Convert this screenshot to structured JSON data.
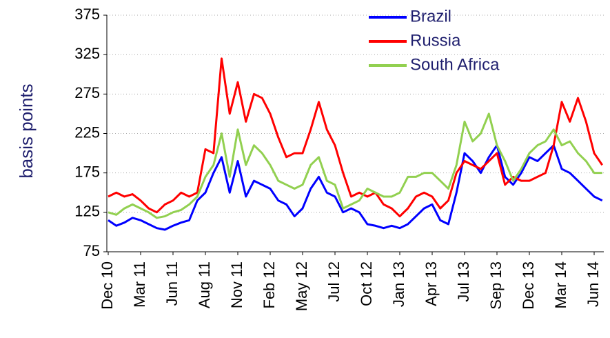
{
  "chart_data": {
    "type": "line",
    "ylabel": "basis points",
    "categories": [
      "Dec 10",
      null,
      null,
      null,
      "Mar 11",
      null,
      null,
      null,
      "Jun 11",
      null,
      null,
      null,
      "Aug 11",
      null,
      null,
      null,
      "Nov 11",
      null,
      null,
      null,
      "Feb 12",
      null,
      null,
      null,
      "May 12",
      null,
      null,
      null,
      "Jul 12",
      null,
      null,
      null,
      "Oct 12",
      null,
      null,
      null,
      "Jan 13",
      null,
      null,
      null,
      "Apr 13",
      null,
      null,
      null,
      "Jul 13",
      null,
      null,
      null,
      "Sep 13",
      null,
      null,
      null,
      "Dec 13",
      null,
      null,
      null,
      "Mar 14",
      null,
      null,
      null,
      "Jun 14",
      null
    ],
    "series": [
      {
        "name": "Brazil",
        "color": "#0000ff",
        "values": [
          115,
          108,
          112,
          118,
          115,
          110,
          105,
          103,
          108,
          112,
          115,
          140,
          150,
          175,
          195,
          150,
          190,
          145,
          165,
          160,
          155,
          140,
          135,
          120,
          130,
          155,
          170,
          150,
          145,
          125,
          130,
          125,
          110,
          108,
          105,
          108,
          105,
          110,
          120,
          130,
          135,
          115,
          110,
          150,
          200,
          190,
          175,
          195,
          210,
          170,
          160,
          175,
          195,
          190,
          200,
          210,
          180,
          175,
          165,
          155,
          145,
          140
        ]
      },
      {
        "name": "Russia",
        "color": "#ff0000",
        "values": [
          145,
          150,
          145,
          148,
          140,
          130,
          125,
          135,
          140,
          150,
          145,
          150,
          205,
          200,
          320,
          250,
          290,
          240,
          275,
          270,
          250,
          220,
          195,
          200,
          200,
          230,
          265,
          230,
          210,
          175,
          145,
          150,
          145,
          150,
          135,
          130,
          120,
          130,
          145,
          150,
          145,
          130,
          140,
          175,
          190,
          185,
          180,
          190,
          200,
          160,
          170,
          165,
          165,
          170,
          175,
          210,
          265,
          240,
          270,
          240,
          200,
          185
        ]
      },
      {
        "name": "South Africa",
        "color": "#92d050",
        "values": [
          125,
          122,
          130,
          135,
          130,
          125,
          118,
          120,
          125,
          128,
          135,
          145,
          170,
          185,
          225,
          170,
          230,
          185,
          210,
          200,
          185,
          165,
          160,
          155,
          160,
          185,
          195,
          165,
          160,
          130,
          135,
          140,
          155,
          150,
          145,
          145,
          150,
          170,
          170,
          175,
          175,
          165,
          155,
          185,
          240,
          215,
          225,
          250,
          210,
          190,
          165,
          180,
          200,
          210,
          215,
          230,
          210,
          215,
          200,
          190,
          175,
          175
        ]
      }
    ],
    "ylim": [
      75,
      375
    ],
    "yticks": [
      75,
      125,
      175,
      225,
      275,
      325,
      375
    ],
    "grid": true,
    "legend": "top"
  }
}
